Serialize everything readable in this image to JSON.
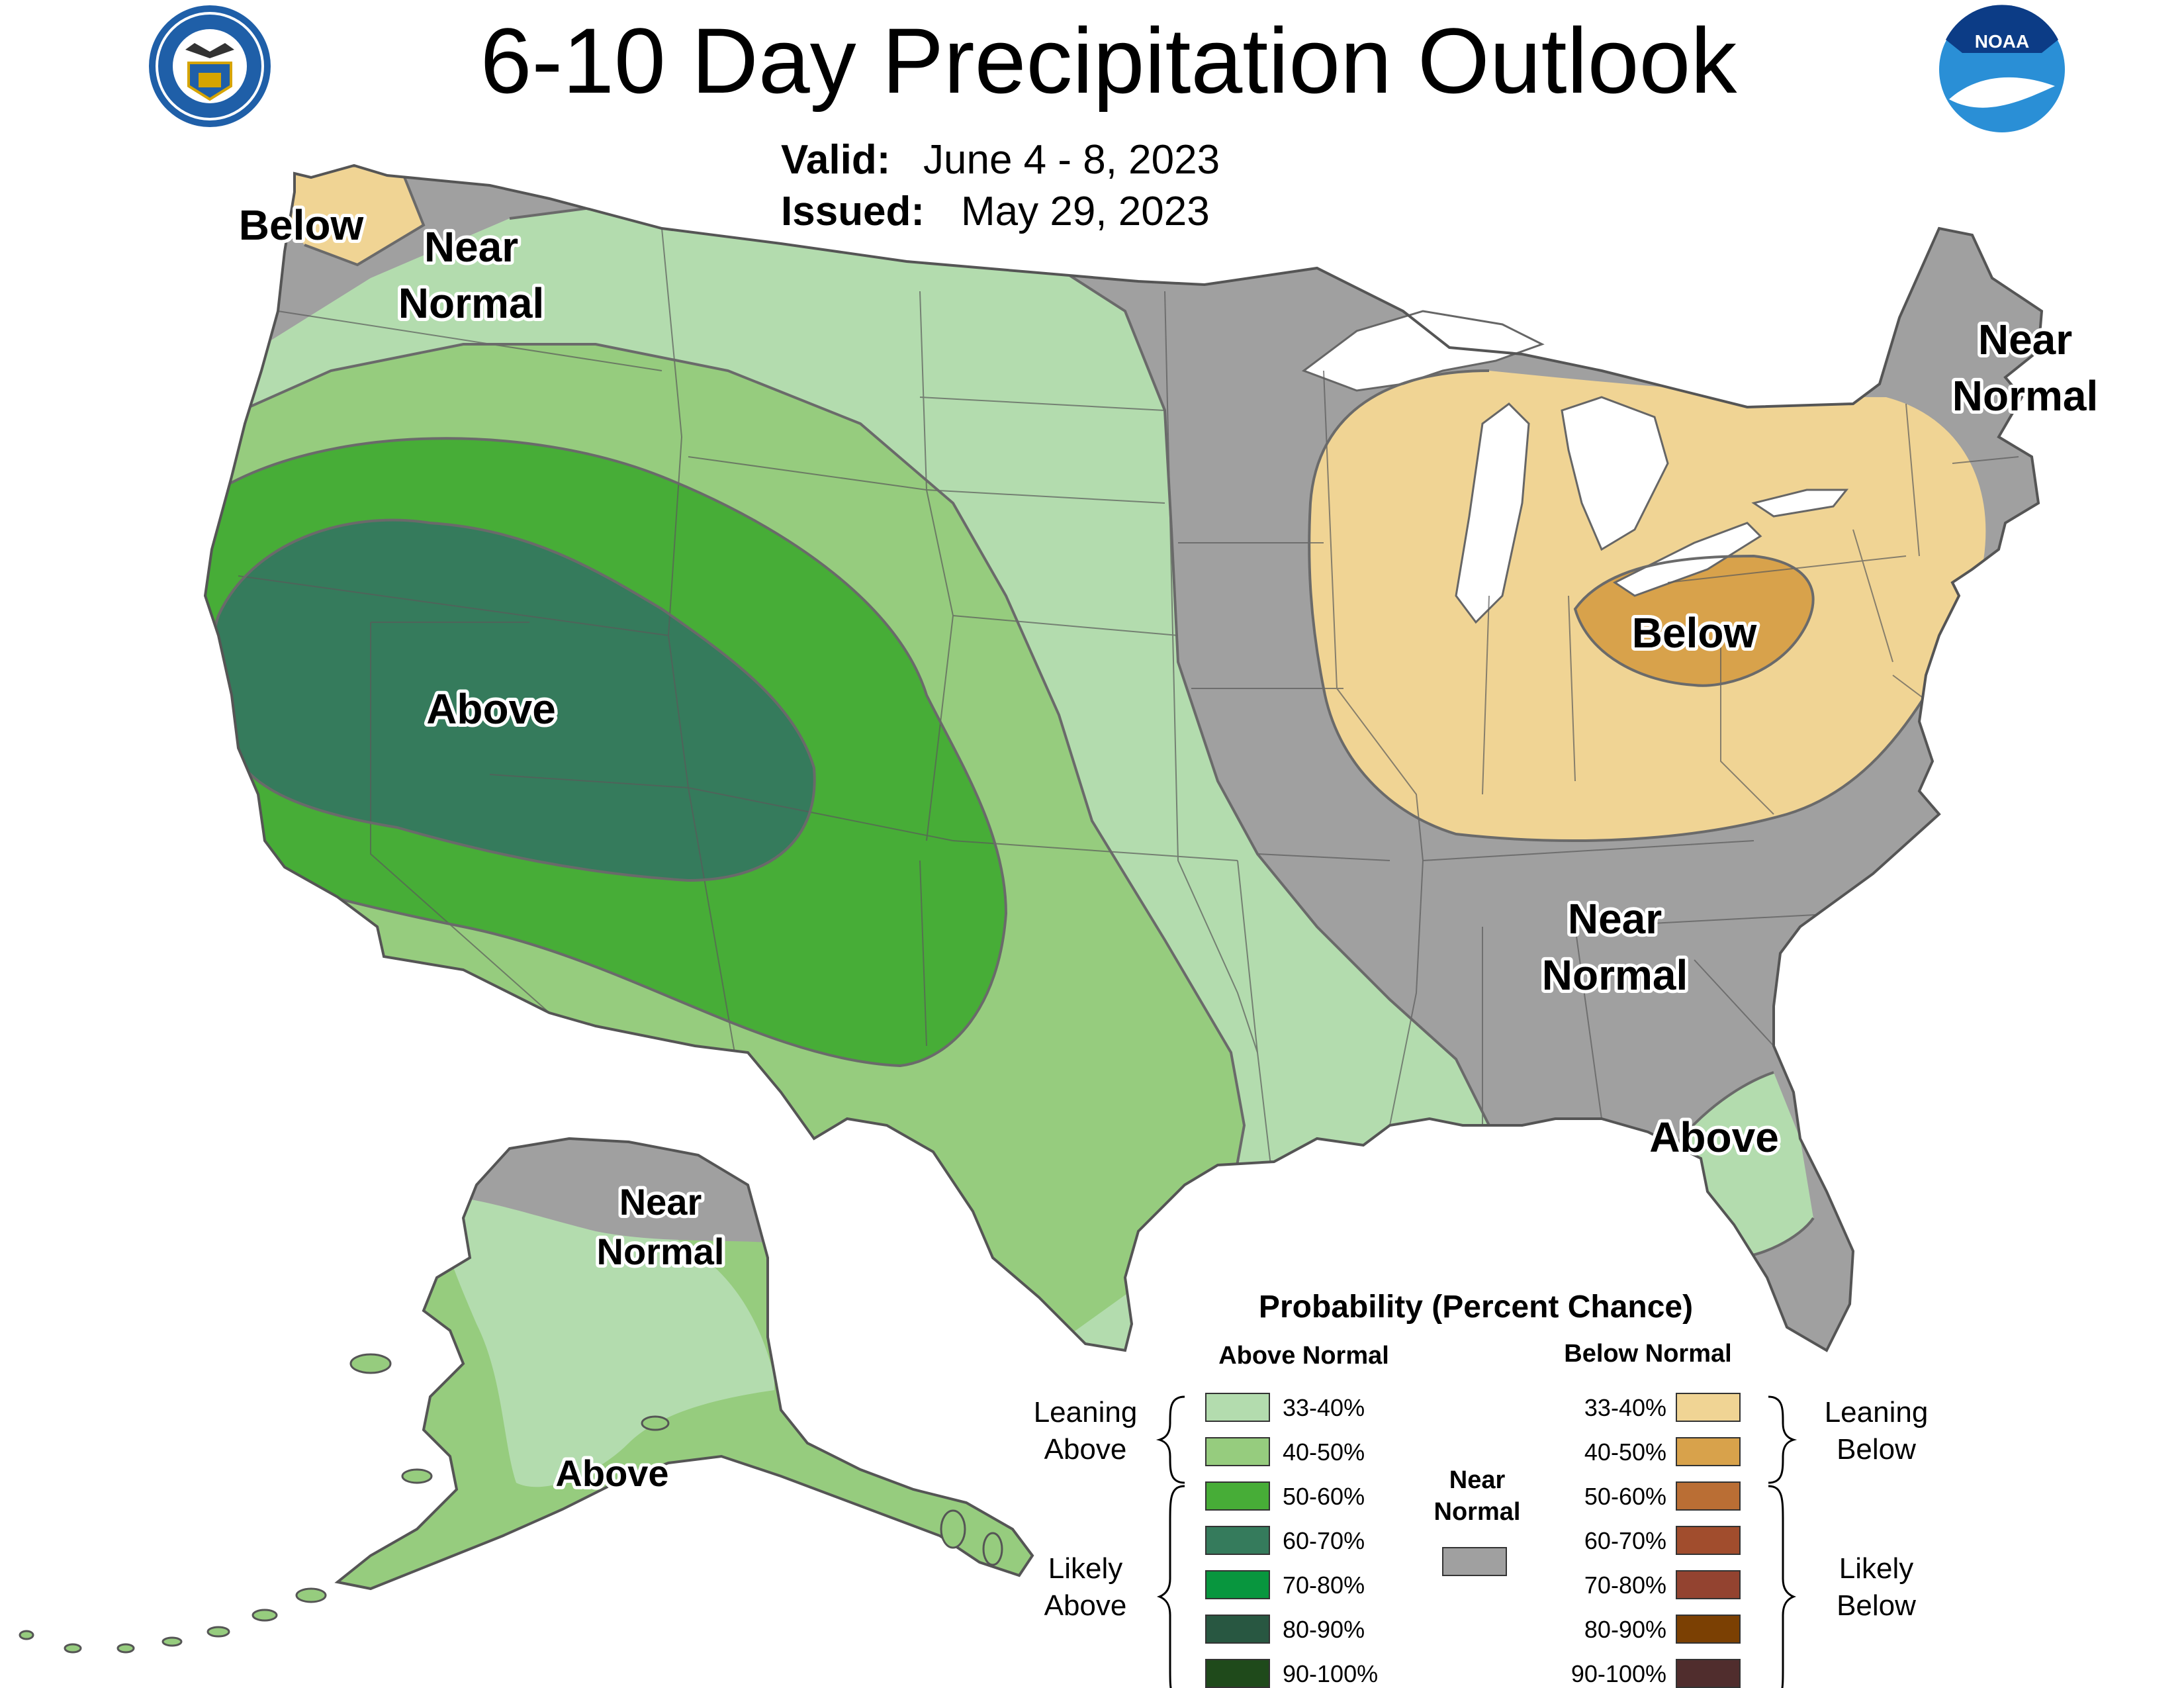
{
  "header": {
    "title": "6-10 Day Precipitation Outlook",
    "valid_label": "Valid:",
    "valid_value": "June 4 - 8, 2023",
    "issued_label": "Issued:",
    "issued_value": "May 29, 2023"
  },
  "logos": {
    "doc_seal": "department-of-commerce-seal",
    "noaa_text": "NOAA"
  },
  "region_labels": {
    "nw_below": "Below",
    "nw_near_1": "Near",
    "nw_near_2": "Normal",
    "ne_near_1": "Near",
    "ne_near_2": "Normal",
    "ohio_below": "Below",
    "west_above": "Above",
    "se_near_1": "Near",
    "se_near_2": "Normal",
    "fl_above": "Above",
    "ak_near_1": "Near",
    "ak_near_2": "Normal",
    "ak_above": "Above"
  },
  "legend": {
    "title": "Probability (Percent Chance)",
    "above_header": "Above Normal",
    "below_header": "Below Normal",
    "leaning_above_1": "Leaning",
    "leaning_above_2": "Above",
    "likely_above_1": "Likely",
    "likely_above_2": "Above",
    "leaning_below_1": "Leaning",
    "leaning_below_2": "Below",
    "likely_below_1": "Likely",
    "likely_below_2": "Below",
    "near_1": "Near",
    "near_2": "Normal",
    "near_color": "#a0a0a0",
    "above": [
      {
        "range": "33-40%",
        "color": "#b3dcae"
      },
      {
        "range": "40-50%",
        "color": "#96cc7e"
      },
      {
        "range": "50-60%",
        "color": "#47ad37"
      },
      {
        "range": "60-70%",
        "color": "#357b5c"
      },
      {
        "range": "70-80%",
        "color": "#08963e"
      },
      {
        "range": "80-90%",
        "color": "#285741"
      },
      {
        "range": "90-100%",
        "color": "#1f4a1b"
      }
    ],
    "below": [
      {
        "range": "33-40%",
        "color": "#f0d494"
      },
      {
        "range": "40-50%",
        "color": "#d8a24b"
      },
      {
        "range": "50-60%",
        "color": "#ba6e34"
      },
      {
        "range": "60-70%",
        "color": "#a14d2d"
      },
      {
        "range": "70-80%",
        "color": "#934330"
      },
      {
        "range": "80-90%",
        "color": "#7b4003"
      },
      {
        "range": "90-100%",
        "color": "#502d2d"
      }
    ]
  },
  "colors": {
    "near_normal": "#a0a0a0",
    "above_33_40": "#b3dcae",
    "above_40_50": "#96cc7e",
    "above_50_60": "#47ad37",
    "above_60_70": "#357b5c",
    "below_33_40": "#f0d494",
    "below_40_50": "#d8a24b"
  }
}
